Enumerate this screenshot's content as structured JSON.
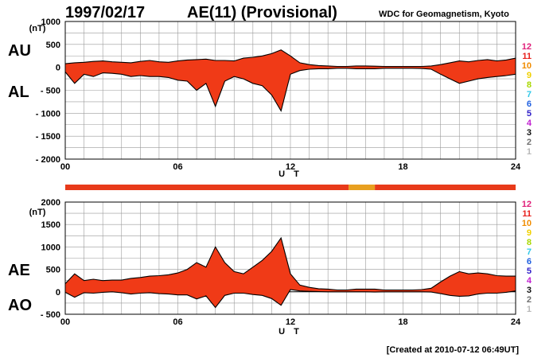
{
  "header": {
    "date": "1997/02/17",
    "title": "AE(11) (Provisional)",
    "source": "WDC for Geomagnetism, Kyoto"
  },
  "footer": {
    "created": "[Created at 2010-07-12 06:49UT]"
  },
  "colors": {
    "fill": "#f03a17",
    "edge": "#000000",
    "grid": "#9a9a9a",
    "bar_main": "#e83a1a",
    "bar_alt": "#e8a020"
  },
  "station_count_legend": [
    {
      "label": "12",
      "color": "#e0207a"
    },
    {
      "label": "11",
      "color": "#e8201c"
    },
    {
      "label": "10",
      "color": "#f08c00"
    },
    {
      "label": "9",
      "color": "#f0d000"
    },
    {
      "label": "8",
      "color": "#a8d800"
    },
    {
      "label": "7",
      "color": "#30c8e8"
    },
    {
      "label": "6",
      "color": "#2060e0"
    },
    {
      "label": "5",
      "color": "#3020c8"
    },
    {
      "label": "4",
      "color": "#c020d0"
    },
    {
      "label": "3",
      "color": "#101010"
    },
    {
      "label": "2",
      "color": "#707070"
    },
    {
      "label": "1",
      "color": "#b8b8b8"
    }
  ],
  "station_bar": [
    {
      "from": 0,
      "to": 15.1,
      "stations": "11"
    },
    {
      "from": 15.1,
      "to": 16.5,
      "stations": "10"
    },
    {
      "from": 16.5,
      "to": 16.6,
      "stations": "11"
    },
    {
      "from": 16.6,
      "to": 24,
      "stations": "11"
    }
  ],
  "chart_data": [
    {
      "type": "area",
      "upper_label": "AU",
      "lower_label": "AL",
      "ylabel": "(nT)",
      "xlabel": "U T",
      "ylim": [
        -2000,
        1000
      ],
      "yticks": [
        1000,
        500,
        0,
        -500,
        -1000,
        -1500,
        -2000
      ],
      "ytick_labels": [
        "1000",
        "500",
        "0",
        "- 500",
        "- 1000",
        "- 1500",
        "- 2000"
      ],
      "xlim": [
        0,
        24
      ],
      "xticks": [
        0,
        6,
        12,
        18,
        24
      ],
      "xtick_labels": [
        "00",
        "06",
        "12",
        "18",
        "24"
      ],
      "grid": true,
      "series": [
        {
          "name": "AU",
          "x": [
            0,
            0.5,
            1,
            1.5,
            2,
            2.5,
            3,
            3.5,
            4,
            4.5,
            5,
            5.5,
            6,
            6.5,
            7,
            7.5,
            8,
            8.5,
            9,
            9.5,
            10,
            10.5,
            11,
            11.5,
            12,
            12.5,
            13,
            13.5,
            14,
            14.5,
            15,
            15.5,
            16,
            16.5,
            17,
            17.5,
            18,
            18.5,
            19,
            19.5,
            20,
            20.5,
            21,
            21.5,
            22,
            22.5,
            23,
            23.5,
            24
          ],
          "values": [
            80,
            100,
            110,
            130,
            140,
            120,
            110,
            100,
            130,
            150,
            120,
            110,
            140,
            160,
            170,
            180,
            150,
            150,
            140,
            200,
            220,
            250,
            300,
            380,
            250,
            100,
            60,
            40,
            30,
            20,
            20,
            30,
            30,
            25,
            20,
            20,
            20,
            20,
            20,
            30,
            60,
            100,
            140,
            120,
            150,
            170,
            140,
            160,
            200
          ]
        },
        {
          "name": "AL",
          "x": [
            0,
            0.5,
            1,
            1.5,
            2,
            2.5,
            3,
            3.5,
            4,
            4.5,
            5,
            5.5,
            6,
            6.5,
            7,
            7.5,
            8,
            8.5,
            9,
            9.5,
            10,
            10.5,
            11,
            11.5,
            12,
            12.5,
            13,
            13.5,
            14,
            14.5,
            15,
            15.5,
            16,
            16.5,
            17,
            17.5,
            18,
            18.5,
            19,
            19.5,
            20,
            20.5,
            21,
            21.5,
            22,
            22.5,
            23,
            23.5,
            24
          ],
          "values": [
            -100,
            -350,
            -150,
            -200,
            -120,
            -130,
            -150,
            -200,
            -180,
            -200,
            -200,
            -220,
            -280,
            -300,
            -500,
            -350,
            -850,
            -300,
            -200,
            -250,
            -350,
            -400,
            -600,
            -950,
            -150,
            -70,
            -40,
            -30,
            -30,
            -20,
            -20,
            -30,
            -30,
            -30,
            -20,
            -20,
            -20,
            -20,
            -25,
            -40,
            -150,
            -250,
            -350,
            -300,
            -250,
            -220,
            -200,
            -180,
            -150
          ]
        }
      ]
    },
    {
      "type": "area",
      "upper_label": "AE",
      "lower_label": "AO",
      "ylabel": "(nT)",
      "xlabel": "U T",
      "ylim": [
        -500,
        2000
      ],
      "yticks": [
        2000,
        1500,
        1000,
        500,
        0,
        -500
      ],
      "ytick_labels": [
        "2000",
        "1500",
        "1000",
        "500",
        "0",
        "- 500"
      ],
      "xlim": [
        0,
        24
      ],
      "xticks": [
        0,
        6,
        12,
        18,
        24
      ],
      "xtick_labels": [
        "00",
        "06",
        "12",
        "18",
        "24"
      ],
      "grid": true,
      "series": [
        {
          "name": "AE",
          "x": [
            0,
            0.5,
            1,
            1.5,
            2,
            2.5,
            3,
            3.5,
            4,
            4.5,
            5,
            5.5,
            6,
            6.5,
            7,
            7.5,
            8,
            8.5,
            9,
            9.5,
            10,
            10.5,
            11,
            11.5,
            12,
            12.5,
            13,
            13.5,
            14,
            14.5,
            15,
            15.5,
            16,
            16.5,
            17,
            17.5,
            18,
            18.5,
            19,
            19.5,
            20,
            20.5,
            21,
            21.5,
            22,
            22.5,
            23,
            23.5,
            24
          ],
          "values": [
            180,
            400,
            250,
            280,
            250,
            260,
            260,
            300,
            320,
            350,
            360,
            380,
            420,
            500,
            650,
            550,
            1000,
            650,
            450,
            400,
            550,
            700,
            900,
            1200,
            400,
            150,
            100,
            70,
            60,
            40,
            40,
            60,
            60,
            60,
            40,
            40,
            40,
            40,
            50,
            80,
            220,
            350,
            450,
            400,
            420,
            400,
            360,
            350,
            350
          ]
        },
        {
          "name": "AO",
          "x": [
            0,
            0.5,
            1,
            1.5,
            2,
            2.5,
            3,
            3.5,
            4,
            4.5,
            5,
            5.5,
            6,
            6.5,
            7,
            7.5,
            8,
            8.5,
            9,
            9.5,
            10,
            10.5,
            11,
            11.5,
            12,
            12.5,
            13,
            13.5,
            14,
            14.5,
            15,
            15.5,
            16,
            16.5,
            17,
            17.5,
            18,
            18.5,
            19,
            19.5,
            20,
            20.5,
            21,
            21.5,
            22,
            22.5,
            23,
            23.5,
            24
          ],
          "values": [
            -10,
            -120,
            -20,
            -30,
            -10,
            0,
            -20,
            -50,
            -30,
            -20,
            -40,
            -50,
            -70,
            -70,
            -160,
            -90,
            -350,
            -80,
            -30,
            -30,
            -60,
            -80,
            -150,
            -300,
            50,
            20,
            10,
            5,
            0,
            0,
            0,
            0,
            0,
            -5,
            0,
            0,
            0,
            0,
            0,
            -5,
            -40,
            -80,
            -100,
            -90,
            -50,
            -30,
            -30,
            -10,
            20
          ]
        }
      ]
    }
  ]
}
